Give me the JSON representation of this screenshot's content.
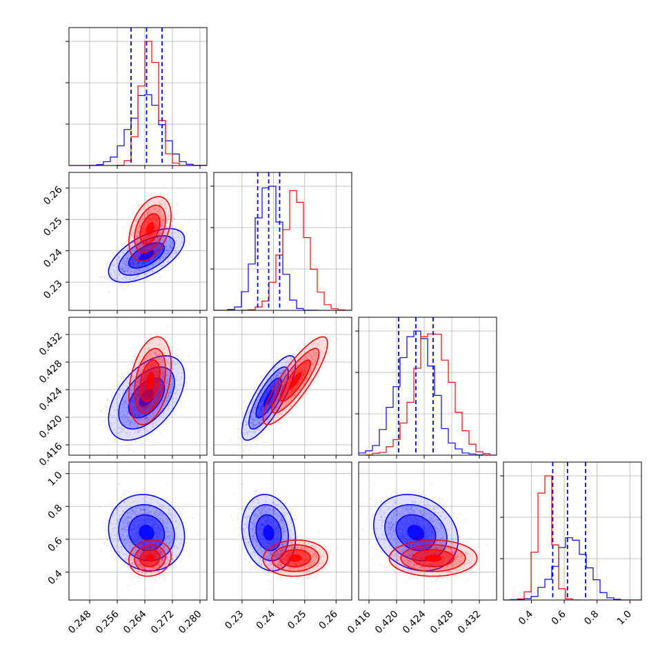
{
  "colors": {
    "blue": "#0000ff",
    "red": "#ff0000",
    "grid": "#b0b0b0"
  },
  "chart_data": {
    "type": "corner",
    "grid": true,
    "params": [
      {
        "range": [
          0.242,
          0.282
        ],
        "ticks": [
          0.248,
          0.256,
          0.264,
          0.272,
          0.28
        ],
        "tick_labels": [
          "0.248",
          "0.256",
          "0.264",
          "0.272",
          "0.280"
        ]
      },
      {
        "range": [
          0.221,
          0.265
        ],
        "ticks": [
          0.23,
          0.24,
          0.25,
          0.26
        ],
        "tick_labels": [
          "0.23",
          "0.24",
          "0.25",
          "0.26"
        ]
      },
      {
        "range": [
          0.4145,
          0.4345
        ],
        "ticks": [
          0.416,
          0.42,
          0.424,
          0.428,
          0.432
        ],
        "tick_labels": [
          "0.416",
          "0.420",
          "0.424",
          "0.428",
          "0.432"
        ]
      },
      {
        "range": [
          0.23,
          1.07
        ],
        "ticks": [
          0.4,
          0.6,
          0.8,
          1.0
        ],
        "tick_labels": [
          "0.4",
          "0.6",
          "0.8",
          "1.0"
        ]
      }
    ],
    "series": [
      {
        "name": "",
        "color": "#0000ff",
        "mean": [
          0.2645,
          0.2385,
          0.4228,
          0.64
        ],
        "std": [
          0.0045,
          0.0035,
          0.0025,
          0.095
        ],
        "corr": [
          [
            1,
            0.6,
            0.5,
            -0.1
          ],
          [
            0.6,
            1,
            0.8,
            -0.15
          ],
          [
            0.5,
            0.8,
            1,
            -0.2
          ],
          [
            -0.1,
            -0.15,
            -0.2,
            1
          ]
        ],
        "quantiles": [
          [
            0.26,
            0.2645,
            0.269
          ],
          [
            0.235,
            0.2385,
            0.242
          ],
          [
            0.4203,
            0.4228,
            0.4253
          ],
          [
            0.53,
            0.62,
            0.73
          ]
        ]
      },
      {
        "name": "",
        "color": "#ff0000",
        "mean": [
          0.2655,
          0.247,
          0.4253,
          0.485
        ],
        "std": [
          0.0025,
          0.0042,
          0.0026,
          0.045
        ],
        "corr": [
          [
            1,
            0.4,
            0.35,
            0.1
          ],
          [
            0.4,
            1,
            0.85,
            0.05
          ],
          [
            0.35,
            0.85,
            1,
            0.0
          ],
          [
            0.1,
            0.05,
            0.0,
            1
          ]
        ]
      }
    ]
  }
}
